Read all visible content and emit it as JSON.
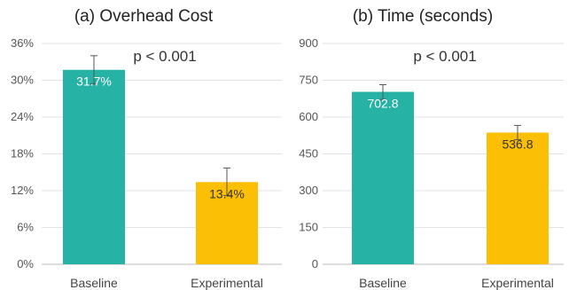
{
  "chart_data": [
    {
      "type": "bar",
      "title": "(a) Overhead Cost",
      "annotation": "p < 0.001",
      "categories": [
        "Baseline",
        "Experimental"
      ],
      "values": [
        31.7,
        13.4
      ],
      "data_labels": [
        "31.7%",
        "13.4%"
      ],
      "error_upper": [
        34.0,
        15.7
      ],
      "error_lower": [
        29.4,
        11.2
      ],
      "ylim": [
        0,
        36
      ],
      "yticks": [
        0,
        6,
        12,
        18,
        24,
        30,
        36
      ],
      "ytick_labels": [
        "0%",
        "6%",
        "12%",
        "18%",
        "24%",
        "30%",
        "36%"
      ],
      "colors": [
        "#26B2A5",
        "#FBBF06"
      ],
      "label_colors": [
        "#ffffff",
        "#333333"
      ],
      "grid": true
    },
    {
      "type": "bar",
      "title": "(b) Time (seconds)",
      "annotation": "p < 0.001",
      "categories": [
        "Baseline",
        "Experimental"
      ],
      "values": [
        702.8,
        536.8
      ],
      "data_labels": [
        "702.8",
        "536.8"
      ],
      "error_upper": [
        732,
        566
      ],
      "error_lower": [
        672,
        508
      ],
      "ylim": [
        0,
        900
      ],
      "yticks": [
        0,
        150,
        300,
        450,
        600,
        750,
        900
      ],
      "ytick_labels": [
        "0",
        "150",
        "300",
        "450",
        "600",
        "750",
        "900"
      ],
      "colors": [
        "#26B2A5",
        "#FBBF06"
      ],
      "label_colors": [
        "#ffffff",
        "#333333"
      ],
      "grid": true
    }
  ]
}
